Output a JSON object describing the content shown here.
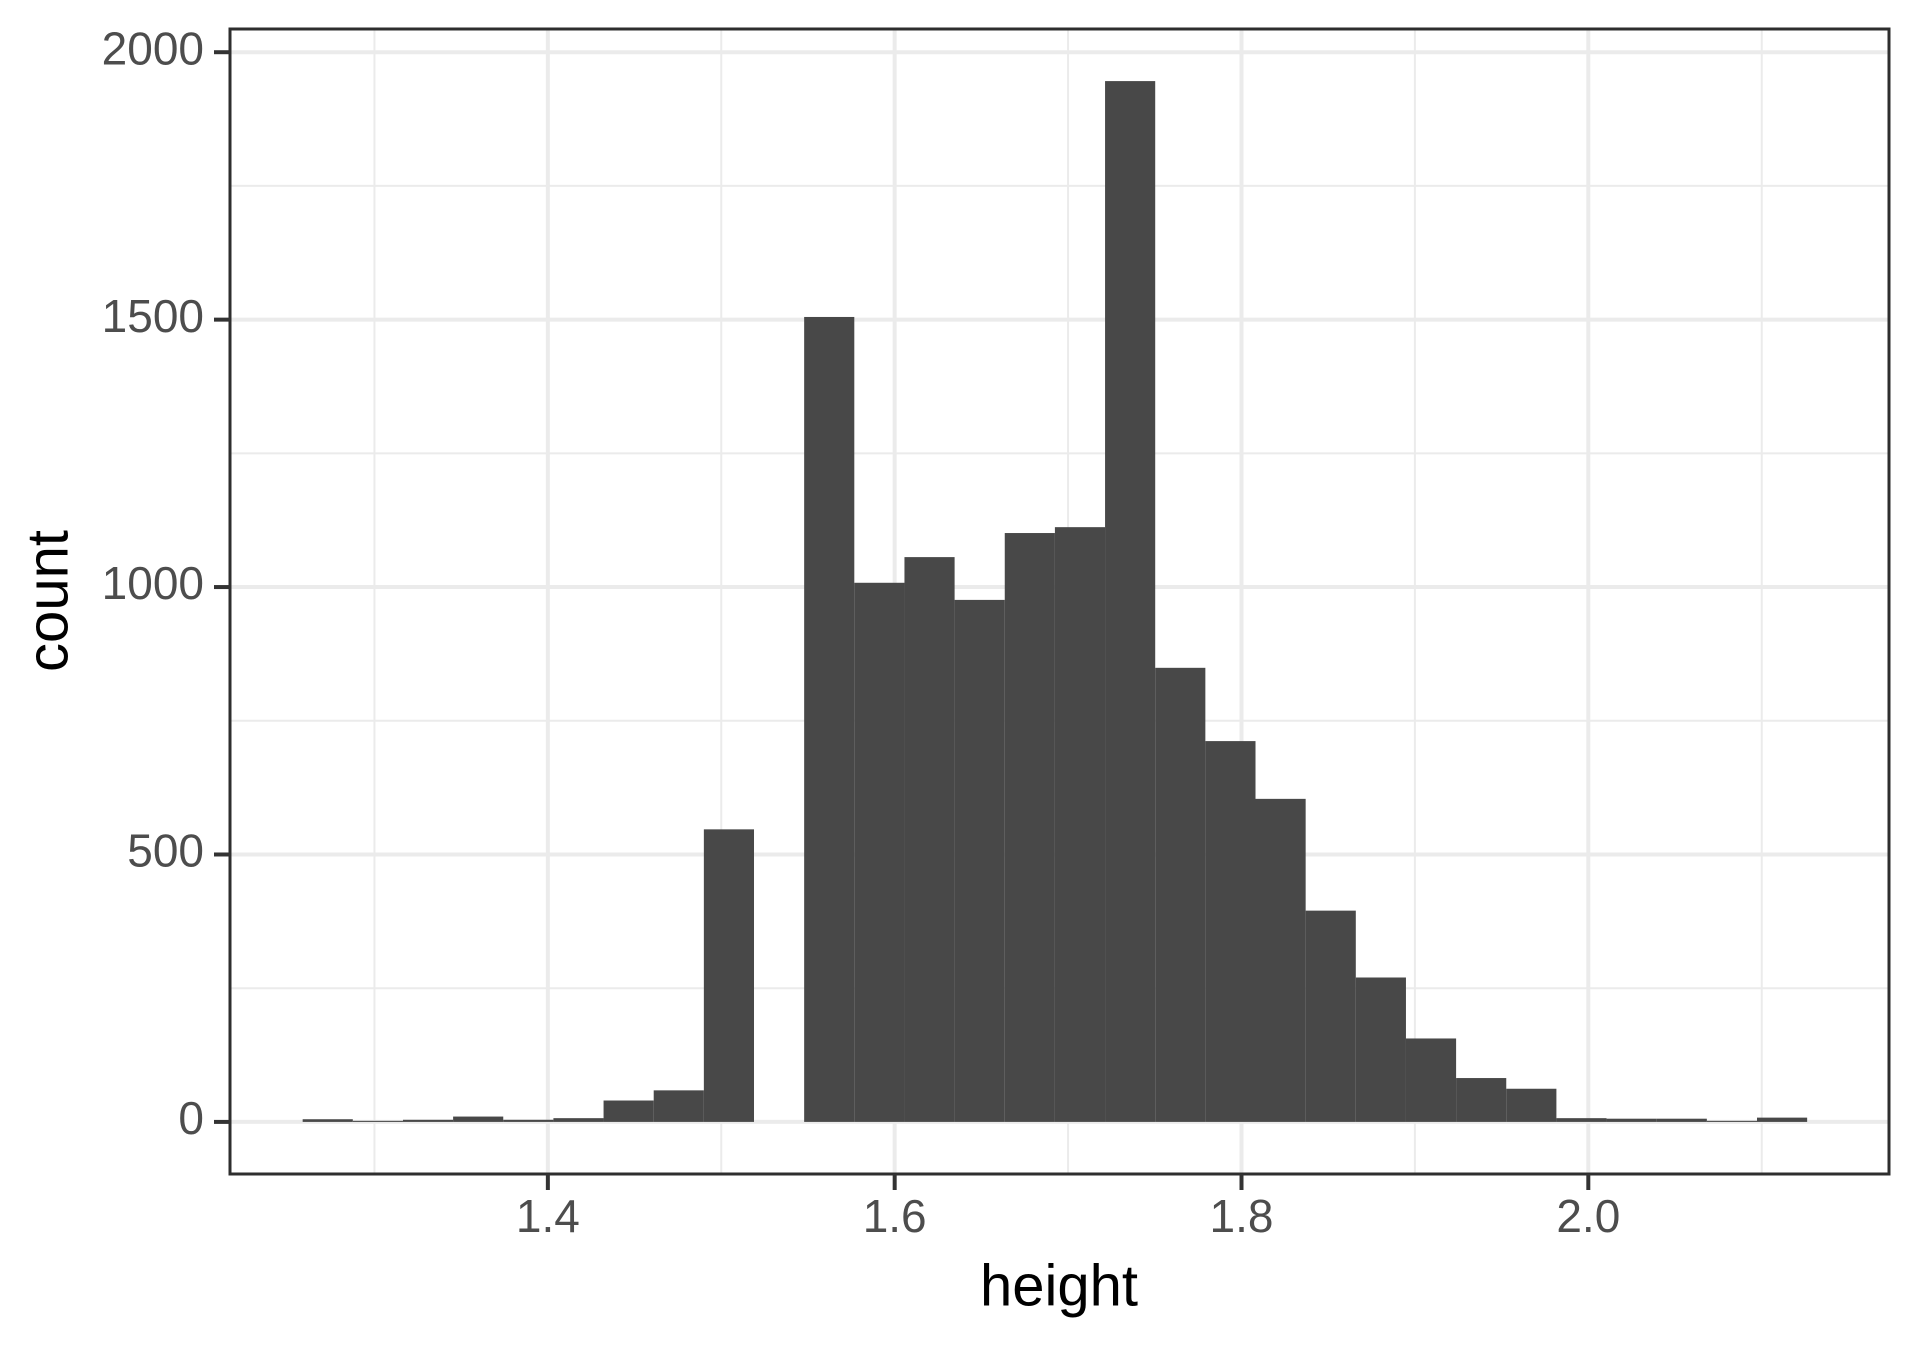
{
  "chart_data": {
    "type": "bar",
    "subtype": "histogram",
    "title": "",
    "xlabel": "height",
    "ylabel": "count",
    "grid": "on",
    "legend": "none",
    "colors": {
      "bar_fill": "#484848",
      "panel_border": "#2e2e2e",
      "gridline": "#ebebeb",
      "tick_mark": "#333333",
      "tick_label": "#4d4d4d",
      "axis_title": "#000000",
      "panel_background": "#ffffff"
    },
    "bins": {
      "start": 1.2586,
      "width": 0.02892,
      "counts": [
        5,
        2,
        4,
        10,
        4,
        7,
        40,
        59,
        547,
        0,
        1505,
        1008,
        1056,
        976,
        1101,
        1112,
        1946,
        849,
        712,
        604,
        395,
        270,
        156,
        82,
        62,
        7,
        6,
        6,
        2,
        8
      ]
    },
    "x_axis": {
      "range": [
        1.2167,
        2.1734
      ],
      "major_ticks": [
        {
          "value": 1.4,
          "label": "1.4"
        },
        {
          "value": 1.6,
          "label": "1.6"
        },
        {
          "value": 1.8,
          "label": "1.8"
        },
        {
          "value": 2.0,
          "label": "2.0"
        }
      ],
      "minor_gridlines": [
        1.3,
        1.5,
        1.7,
        1.9,
        2.1
      ]
    },
    "y_axis": {
      "range": [
        -97.4,
        2043.4
      ],
      "major_ticks": [
        {
          "value": 0,
          "label": "0"
        },
        {
          "value": 500,
          "label": "500"
        },
        {
          "value": 1000,
          "label": "1000"
        },
        {
          "value": 1500,
          "label": "1500"
        },
        {
          "value": 2000,
          "label": "2000"
        }
      ],
      "minor_gridlines": [
        250,
        750,
        1250,
        1750
      ]
    }
  }
}
